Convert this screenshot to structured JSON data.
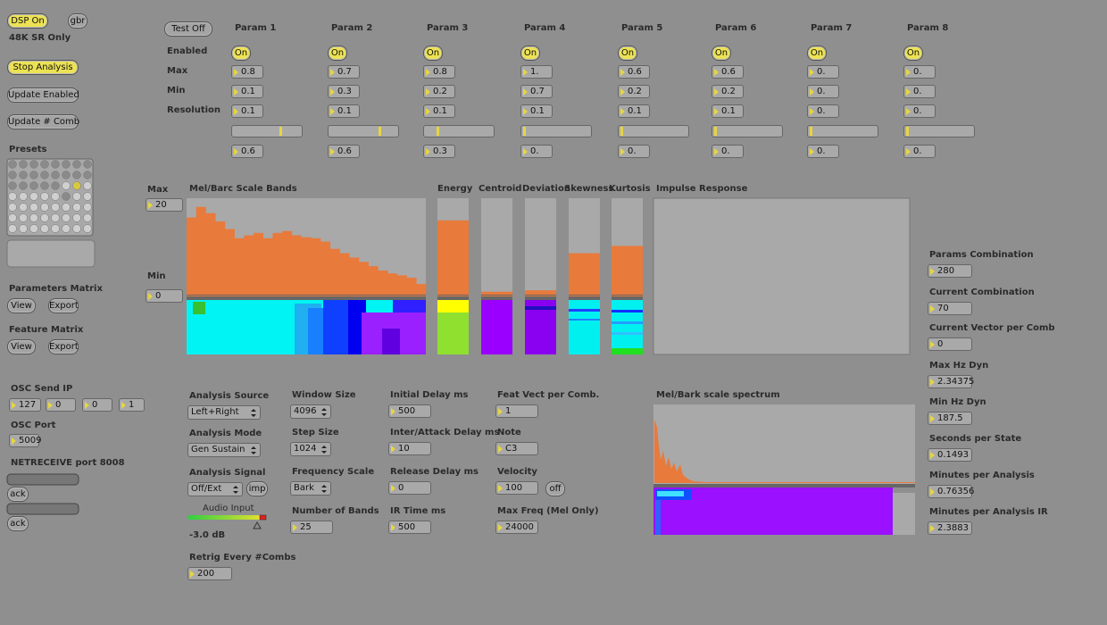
{
  "left": {
    "dsp": "DSP On",
    "gbr": "gbr",
    "sr_note": "48K SR Only",
    "stop": "Stop Analysis",
    "update_enabled": "Update Enabled",
    "update_comb": "Update # Comb",
    "presets": "Presets",
    "params_matrix": {
      "label": "Parameters Matrix",
      "view": "View",
      "export": "Export"
    },
    "feature_matrix": {
      "label": "Feature Matrix",
      "view": "View",
      "export": "Export"
    },
    "osc_send_ip": {
      "label": "OSC Send IP",
      "values": [
        "127",
        "0",
        "0",
        "1"
      ]
    },
    "osc_port": {
      "label": "OSC Port",
      "value": "5009"
    },
    "netreceive": {
      "label": "NETRECEIVE port 8008",
      "ack": [
        "ack",
        "ack"
      ]
    }
  },
  "params": {
    "test": "Test Off",
    "row_labels": [
      "Enabled",
      "Max",
      "Min",
      "Resolution"
    ],
    "columns": [
      {
        "name": "Param 1",
        "enabled": "On",
        "max": "0.8",
        "min": "0.1",
        "resolution": "0.1",
        "value": "0.6"
      },
      {
        "name": "Param 2",
        "enabled": "On",
        "max": "0.7",
        "min": "0.3",
        "resolution": "0.1",
        "value": "0.6"
      },
      {
        "name": "Param 3",
        "enabled": "On",
        "max": "0.8",
        "min": "0.2",
        "resolution": "0.1",
        "value": "0.3"
      },
      {
        "name": "Param 4",
        "enabled": "On",
        "max": "1.",
        "min": "0.7",
        "resolution": "0.1",
        "value": "0."
      },
      {
        "name": "Param 5",
        "enabled": "On",
        "max": "0.6",
        "min": "0.2",
        "resolution": "0.1",
        "value": "0."
      },
      {
        "name": "Param 6",
        "enabled": "On",
        "max": "0.6",
        "min": "0.2",
        "resolution": "0.1",
        "value": "0."
      },
      {
        "name": "Param 7",
        "enabled": "On",
        "max": "0.",
        "min": "0.",
        "resolution": "0.",
        "value": "0."
      },
      {
        "name": "Param 8",
        "enabled": "On",
        "max": "0.",
        "min": "0.",
        "resolution": "0.",
        "value": "0."
      }
    ]
  },
  "features": {
    "max_label": "Max",
    "max": "20",
    "min_label": "Min",
    "min": "0",
    "bands": {
      "title": "Mel/Barc Scale Bands",
      "values": [
        16.0,
        18.2,
        16.9,
        15.2,
        13.6,
        11.7,
        12.3,
        12.8,
        11.7,
        12.8,
        13.2,
        12.3,
        11.9,
        11.7,
        11.0,
        9.5,
        8.6,
        7.7,
        6.8,
        5.9,
        5.0,
        4.4,
        4.0,
        3.5,
        2.2
      ]
    },
    "descriptors": [
      {
        "name": "Energy",
        "value": 15.4
      },
      {
        "name": "Centroid",
        "value": 0.6
      },
      {
        "name": "Deviation",
        "value": 0.9
      },
      {
        "name": "Skewness",
        "value": 8.6
      },
      {
        "name": "Kurtosis",
        "value": 10.1
      }
    ],
    "impulse_title": "Impulse Response"
  },
  "analysis": {
    "analysis_source": {
      "label": "Analysis Source",
      "value": "Left+Right"
    },
    "analysis_mode": {
      "label": "Analysis Mode",
      "value": "Gen Sustain"
    },
    "analysis_signal": {
      "label": "Analysis Signal",
      "value": "Off/Ext",
      "button": "imp"
    },
    "audio_input": {
      "label": "Audio Input",
      "level": "-3.0 dB"
    },
    "retrig": {
      "label": "Retrig Every #Combs",
      "value": "200"
    },
    "window_size": {
      "label": "Window Size",
      "value": "4096"
    },
    "step_size": {
      "label": "Step Size",
      "value": "1024"
    },
    "frequency_scale": {
      "label": "Frequency Scale",
      "value": "Bark"
    },
    "number_of_bands": {
      "label": "Number of Bands",
      "value": "25"
    },
    "initial_delay": {
      "label": "Initial Delay ms",
      "value": "500"
    },
    "inter_attack_delay": {
      "label": "Inter/Attack Delay ms",
      "value": "10"
    },
    "release_delay": {
      "label": "Release Delay ms",
      "value": "0"
    },
    "ir_time": {
      "label": "IR Time ms",
      "value": "500"
    },
    "feat_vect": {
      "label": "Feat Vect per Comb.",
      "value": "1"
    },
    "note": {
      "label": "Note",
      "value": "C3"
    },
    "velocity": {
      "label": "Velocity",
      "value": "100",
      "button": "off"
    },
    "max_freq": {
      "label": "Max Freq (Mel Only)",
      "value": "24000"
    }
  },
  "spectrum_title": "Mel/Bark scale spectrum",
  "stats": [
    {
      "label": "Params Combination",
      "value": "280"
    },
    {
      "label": "Current Combination",
      "value": "70"
    },
    {
      "label": "Current Vector per Comb",
      "value": "0"
    },
    {
      "label": "Max Hz Dyn",
      "value": "2.34375"
    },
    {
      "label": "Min Hz Dyn",
      "value": "187.5"
    },
    {
      "label": "Seconds per State",
      "value": "0.1493"
    },
    {
      "label": "Minutes per Analysis",
      "value": "0.76356"
    },
    {
      "label": "Minutes per Analysis IR",
      "value": "2.3883"
    }
  ]
}
